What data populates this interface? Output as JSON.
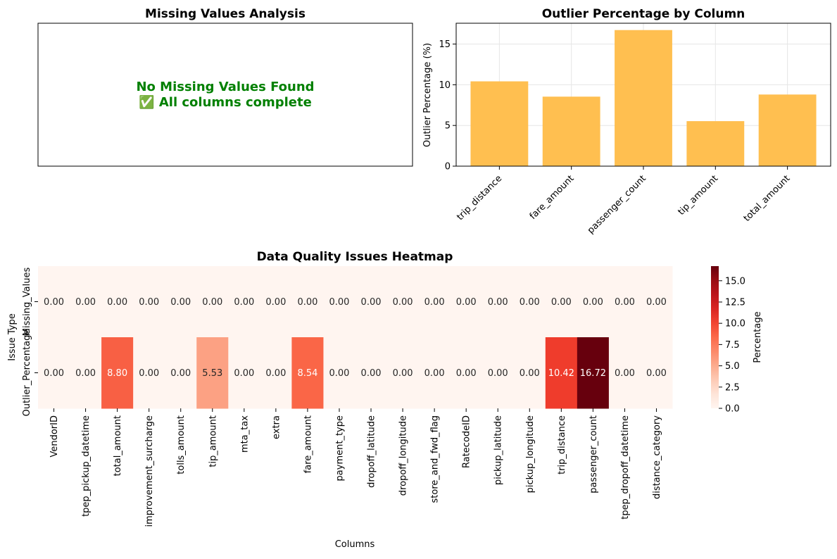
{
  "chart_data": [
    {
      "type": "text",
      "title": "Missing Values Analysis",
      "message_lines": [
        "No Missing Values Found",
        "✅ All columns complete"
      ],
      "message_color": "#008000"
    },
    {
      "type": "bar",
      "title": "Outlier Percentage by Column",
      "xlabel": "",
      "ylabel": "Outlier Percentage (%)",
      "categories": [
        "trip_distance",
        "fare_amount",
        "passenger_count",
        "tip_amount",
        "total_amount"
      ],
      "values": [
        10.42,
        8.54,
        16.72,
        5.53,
        8.8
      ],
      "ylim": [
        0,
        17.56
      ],
      "yticks": [
        0,
        5,
        10,
        15
      ],
      "color": "#FFBF50",
      "grid": true
    },
    {
      "type": "heatmap",
      "title": "Data Quality Issues Heatmap",
      "xlabel": "Columns",
      "ylabel": "Issue Type",
      "rows": [
        "Missing_Values",
        "Outlier_Percentage"
      ],
      "columns": [
        "VendorID",
        "tpep_pickup_datetime",
        "total_amount",
        "improvement_surcharge",
        "tolls_amount",
        "tip_amount",
        "mta_tax",
        "extra",
        "fare_amount",
        "payment_type",
        "dropoff_latitude",
        "dropoff_longitude",
        "store_and_fwd_flag",
        "RatecodeID",
        "pickup_latitude",
        "pickup_longitude",
        "trip_distance",
        "passenger_count",
        "tpep_dropoff_datetime",
        "distance_category"
      ],
      "values": [
        [
          0,
          0,
          0,
          0,
          0,
          0,
          0,
          0,
          0,
          0,
          0,
          0,
          0,
          0,
          0,
          0,
          0,
          0,
          0,
          0
        ],
        [
          0,
          0,
          8.8,
          0,
          0,
          5.53,
          0,
          0,
          8.54,
          0,
          0,
          0,
          0,
          0,
          0,
          0,
          10.42,
          16.72,
          0,
          0
        ]
      ],
      "vmin": 0,
      "vmax": 16.72,
      "colormap": "Reds",
      "colorbar_label": "Percentage",
      "colorbar_ticks": [
        0,
        2.5,
        5,
        7.5,
        10,
        12.5,
        15
      ]
    }
  ]
}
